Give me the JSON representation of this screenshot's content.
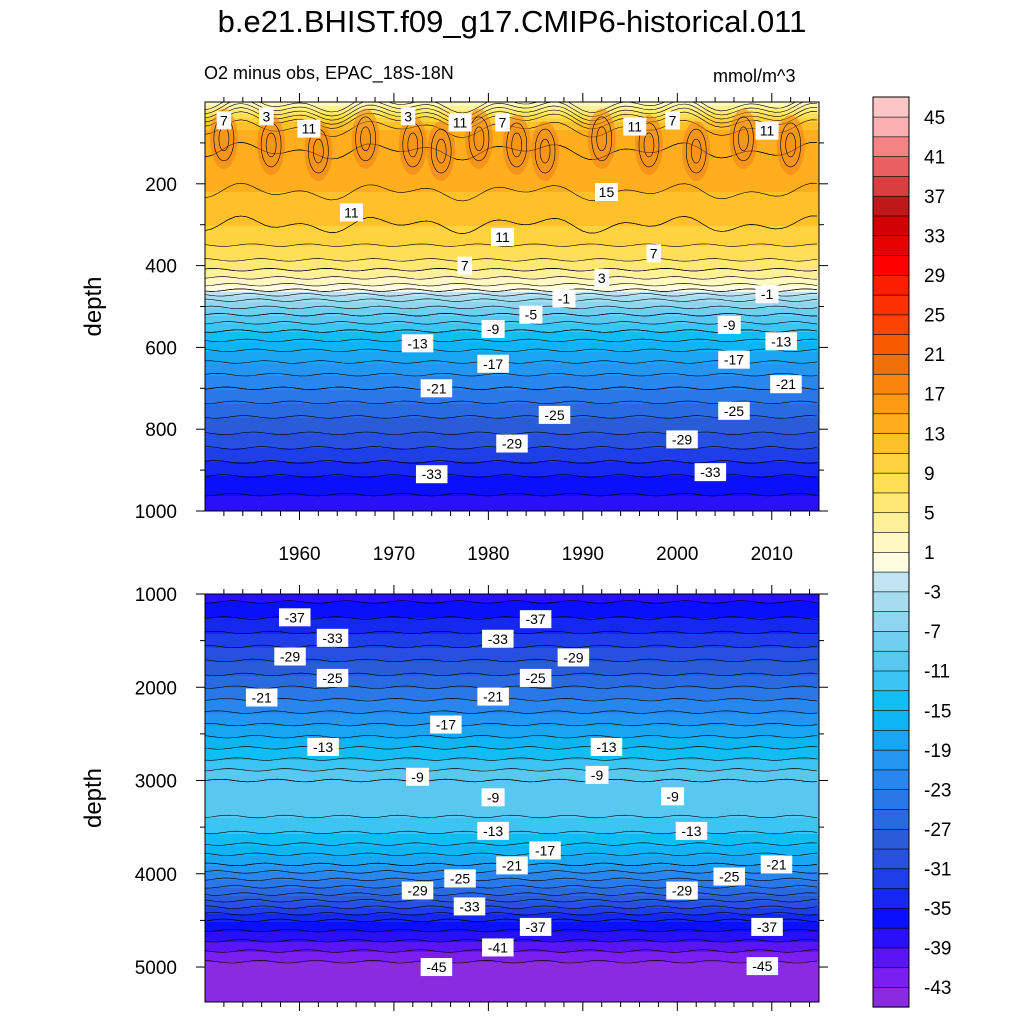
{
  "figure": {
    "title": "b.e21.BHIST.f09_g17.CMIP6-historical.011",
    "subtitle": "O2 minus obs, EPAC_18S-18N",
    "units": "mmol/m^3"
  },
  "colors": {
    "levels": [
      -45,
      -43,
      -41,
      -39,
      -37,
      -35,
      -33,
      -31,
      -29,
      -27,
      -25,
      -23,
      -21,
      -19,
      -17,
      -15,
      -13,
      -11,
      -9,
      -7,
      -5,
      -3,
      -1,
      1,
      3,
      5,
      7,
      9,
      11,
      13,
      15,
      17,
      19,
      21,
      23,
      25,
      27,
      29,
      31,
      33,
      35,
      37,
      39,
      41,
      43,
      45,
      47
    ],
    "fills": [
      "#8a2be2",
      "#7a1ff0",
      "#5a14f5",
      "#2a10f8",
      "#0a10fa",
      "#1428f2",
      "#1e3ee8",
      "#2850e0",
      "#2a5cd8",
      "#2a6ae0",
      "#2a78e8",
      "#2886ec",
      "#2296f0",
      "#18a6f2",
      "#0eb4f4",
      "#10bef4",
      "#3cc4f2",
      "#58c8f0",
      "#70cef0",
      "#8ed6f0",
      "#a6dcf0",
      "#c0e4f2",
      "#fffce0",
      "#fff8c0",
      "#fff09a",
      "#ffe874",
      "#ffdf55",
      "#ffd23e",
      "#ffc12a",
      "#ffae1e",
      "#ff9a14",
      "#f8860e",
      "#f07008",
      "#f85a00",
      "#fb4400",
      "#fd3000",
      "#ff1e00",
      "#ff0000",
      "#e80000",
      "#d20000",
      "#c01818",
      "#d84040",
      "#ea6060",
      "#f48484",
      "#fab0b0",
      "#fcc6c6"
    ]
  },
  "chart_data": [
    {
      "type": "heatmap",
      "panel": "upper",
      "title": "O2 minus obs, EPAC_18S-18N",
      "xlabel": "",
      "ylabel": "depth",
      "xlim": [
        1950,
        2015
      ],
      "ylim": [
        1000,
        0
      ],
      "xticks": [
        1960,
        1970,
        1980,
        1990,
        2000,
        2010
      ],
      "xtick_labels": [
        "1960",
        "1970",
        "1980",
        "1990",
        "2000",
        "2010"
      ],
      "yticks": [
        200,
        400,
        600,
        800,
        1000
      ],
      "ytick_labels": [
        "200",
        "400",
        "600",
        "800",
        "1000"
      ],
      "profile": {
        "depth": [
          0,
          30,
          50,
          80,
          120,
          180,
          240,
          300,
          340,
          380,
          410,
          440,
          460,
          480,
          520,
          560,
          600,
          650,
          700,
          760,
          820,
          880,
          940,
          1000
        ],
        "value": [
          2,
          8,
          12,
          14,
          15,
          14,
          12.5,
          11,
          9.5,
          7.5,
          5,
          2,
          -1,
          -4.5,
          -9,
          -13,
          -16.5,
          -20,
          -23,
          -26.5,
          -29.5,
          -33,
          -36.5,
          -38
        ]
      },
      "contour_labels": [
        {
          "year": 1952,
          "depth": 45,
          "text": "7"
        },
        {
          "year": 1956.5,
          "depth": 35,
          "text": "3"
        },
        {
          "year": 1961,
          "depth": 65,
          "text": "11"
        },
        {
          "year": 1971.5,
          "depth": 35,
          "text": "3"
        },
        {
          "year": 1977,
          "depth": 50,
          "text": "11"
        },
        {
          "year": 1981.5,
          "depth": 50,
          "text": "7"
        },
        {
          "year": 1995.5,
          "depth": 60,
          "text": "11"
        },
        {
          "year": 1999.5,
          "depth": 45,
          "text": "7"
        },
        {
          "year": 2009.5,
          "depth": 70,
          "text": "11"
        },
        {
          "year": 1992.5,
          "depth": 220,
          "text": "15"
        },
        {
          "year": 1965.5,
          "depth": 270,
          "text": "11"
        },
        {
          "year": 1981.5,
          "depth": 330,
          "text": "11"
        },
        {
          "year": 1997.5,
          "depth": 370,
          "text": "7"
        },
        {
          "year": 1977.5,
          "depth": 400,
          "text": "7"
        },
        {
          "year": 1992,
          "depth": 430,
          "text": "3"
        },
        {
          "year": 1988,
          "depth": 480,
          "text": "-1"
        },
        {
          "year": 2009.5,
          "depth": 470,
          "text": "-1"
        },
        {
          "year": 1984.5,
          "depth": 520,
          "text": "-5"
        },
        {
          "year": 1980.5,
          "depth": 555,
          "text": "-9"
        },
        {
          "year": 2005.5,
          "depth": 545,
          "text": "-9"
        },
        {
          "year": 1972.5,
          "depth": 590,
          "text": "-13"
        },
        {
          "year": 2011,
          "depth": 585,
          "text": "-13"
        },
        {
          "year": 1980.5,
          "depth": 640,
          "text": "-17"
        },
        {
          "year": 2006,
          "depth": 630,
          "text": "-17"
        },
        {
          "year": 1974.5,
          "depth": 700,
          "text": "-21"
        },
        {
          "year": 2011.5,
          "depth": 690,
          "text": "-21"
        },
        {
          "year": 1987,
          "depth": 765,
          "text": "-25"
        },
        {
          "year": 2006,
          "depth": 755,
          "text": "-25"
        },
        {
          "year": 1982.5,
          "depth": 835,
          "text": "-29"
        },
        {
          "year": 2000.5,
          "depth": 825,
          "text": "-29"
        },
        {
          "year": 1974,
          "depth": 910,
          "text": "-33"
        },
        {
          "year": 2003.5,
          "depth": 905,
          "text": "-33"
        }
      ]
    },
    {
      "type": "heatmap",
      "panel": "lower",
      "title": "",
      "xlabel": "",
      "ylabel": "depth",
      "xlim": [
        1950,
        2015
      ],
      "ylim": [
        5375,
        1000
      ],
      "xticks": [
        1960,
        1970,
        1980,
        1990,
        2000,
        2010
      ],
      "xtick_labels": [
        "",
        "",
        "",
        "",
        "",
        ""
      ],
      "yticks": [
        1000,
        2000,
        3000,
        4000,
        5000
      ],
      "ytick_labels": [
        "1000",
        "2000",
        "3000",
        "4000",
        "5000"
      ],
      "profile": {
        "depth": [
          1000,
          1300,
          1600,
          1900,
          2200,
          2500,
          2800,
          3000,
          3300,
          3600,
          3900,
          4200,
          4500,
          4800,
          5000,
          5375
        ],
        "value": [
          -38,
          -34.5,
          -30.5,
          -26.5,
          -22,
          -17.5,
          -12.5,
          -9,
          -10,
          -13.5,
          -19,
          -26.5,
          -35,
          -40.5,
          -44,
          -46
        ]
      },
      "contour_labels": [
        {
          "year": 1959.5,
          "depth": 1250,
          "text": "-37"
        },
        {
          "year": 1985,
          "depth": 1270,
          "text": "-37"
        },
        {
          "year": 1963.5,
          "depth": 1470,
          "text": "-33"
        },
        {
          "year": 1981,
          "depth": 1480,
          "text": "-33"
        },
        {
          "year": 1959,
          "depth": 1670,
          "text": "-29"
        },
        {
          "year": 1989,
          "depth": 1680,
          "text": "-29"
        },
        {
          "year": 1963.5,
          "depth": 1900,
          "text": "-25"
        },
        {
          "year": 1985,
          "depth": 1900,
          "text": "-25"
        },
        {
          "year": 1956,
          "depth": 2110,
          "text": "-21"
        },
        {
          "year": 1980.5,
          "depth": 2100,
          "text": "-21"
        },
        {
          "year": 1975.5,
          "depth": 2400,
          "text": "-17"
        },
        {
          "year": 1962.5,
          "depth": 2640,
          "text": "-13"
        },
        {
          "year": 1992.5,
          "depth": 2640,
          "text": "-13"
        },
        {
          "year": 1972.5,
          "depth": 2960,
          "text": "-9"
        },
        {
          "year": 1991.5,
          "depth": 2940,
          "text": "-9"
        },
        {
          "year": 1980.5,
          "depth": 3180,
          "text": "-9"
        },
        {
          "year": 1999.5,
          "depth": 3170,
          "text": "-9"
        },
        {
          "year": 1980.5,
          "depth": 3540,
          "text": "-13"
        },
        {
          "year": 2001.5,
          "depth": 3540,
          "text": "-13"
        },
        {
          "year": 1986,
          "depth": 3750,
          "text": "-17"
        },
        {
          "year": 1982.5,
          "depth": 3910,
          "text": "-21"
        },
        {
          "year": 2010.5,
          "depth": 3900,
          "text": "-21"
        },
        {
          "year": 1977,
          "depth": 4050,
          "text": "-25"
        },
        {
          "year": 2005.5,
          "depth": 4030,
          "text": "-25"
        },
        {
          "year": 1972.5,
          "depth": 4180,
          "text": "-29"
        },
        {
          "year": 2000.5,
          "depth": 4180,
          "text": "-29"
        },
        {
          "year": 1978,
          "depth": 4350,
          "text": "-33"
        },
        {
          "year": 1985,
          "depth": 4570,
          "text": "-37"
        },
        {
          "year": 2009.5,
          "depth": 4570,
          "text": "-37"
        },
        {
          "year": 1981,
          "depth": 4790,
          "text": "-41"
        },
        {
          "year": 1974.5,
          "depth": 5000,
          "text": "-45"
        },
        {
          "year": 2009,
          "depth": 4990,
          "text": "-45"
        }
      ]
    }
  ],
  "colorbar": {
    "labels": [
      "45",
      "41",
      "37",
      "33",
      "29",
      "25",
      "21",
      "17",
      "13",
      "9",
      "5",
      "1",
      "-3",
      "-7",
      "-11",
      "-15",
      "-19",
      "-23",
      "-27",
      "-31",
      "-35",
      "-39",
      "-43"
    ]
  }
}
